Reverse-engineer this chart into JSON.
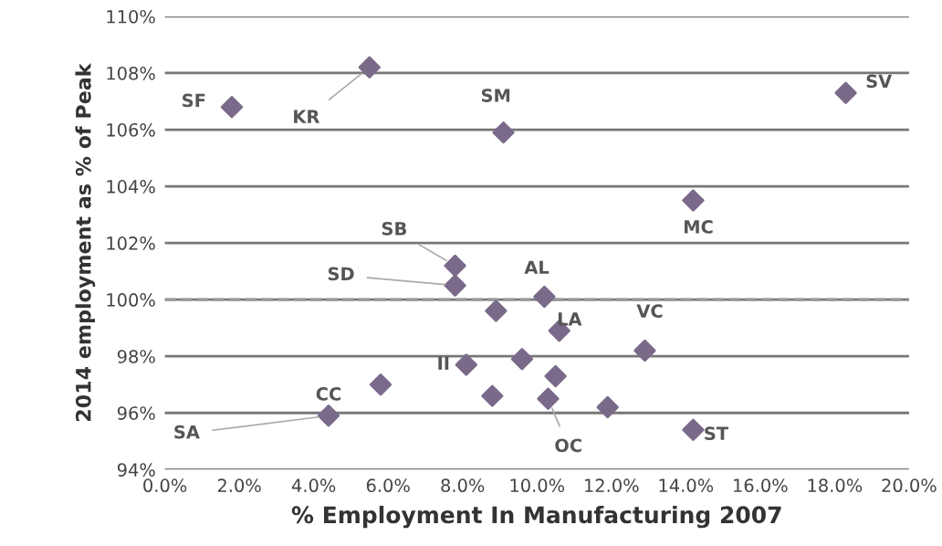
{
  "chart_data": {
    "type": "scatter",
    "xlabel": "% Employment In Manufacturing 2007",
    "ylabel": "2014 employment as % of Peak",
    "x": [
      1.8,
      5.5,
      9.1,
      18.3,
      14.2,
      7.8,
      7.8,
      8.9,
      10.2,
      10.6,
      12.9,
      8.1,
      9.6,
      10.5,
      8.8,
      10.3,
      11.9,
      14.2,
      4.4,
      5.8
    ],
    "series": [
      {
        "color": "#7a6a8a",
        "values": [
          106.8,
          108.2,
          105.9,
          107.3,
          103.5,
          101.2,
          100.5,
          99.6,
          100.1,
          98.9,
          98.2,
          97.7,
          97.9,
          97.3,
          96.6,
          96.5,
          96.2,
          95.4,
          95.9,
          97.0
        ]
      }
    ],
    "marker": "diamond",
    "grid": "y",
    "xlim": [
      0,
      20
    ],
    "xticks": [
      {
        "value": 0,
        "label": "0.0%"
      },
      {
        "value": 2,
        "label": "2.0%"
      },
      {
        "value": 4,
        "label": "4.0%"
      },
      {
        "value": 6,
        "label": "6.0%"
      },
      {
        "value": 8,
        "label": "8.0%"
      },
      {
        "value": 10,
        "label": "10.0%"
      },
      {
        "value": 12,
        "label": "12.0%"
      },
      {
        "value": 14,
        "label": "14.0%"
      },
      {
        "value": 16,
        "label": "16.0%"
      },
      {
        "value": 18,
        "label": "18.0%"
      },
      {
        "value": 20,
        "label": "20.0%"
      }
    ],
    "ylim": [
      94,
      110
    ],
    "yticks": [
      {
        "value": 94,
        "label": "94%"
      },
      {
        "value": 96,
        "label": "96%"
      },
      {
        "value": 98,
        "label": "98%"
      },
      {
        "value": 100,
        "label": "100%"
      },
      {
        "value": 102,
        "label": "102%"
      },
      {
        "value": 104,
        "label": "104%"
      },
      {
        "value": 106,
        "label": "106%"
      },
      {
        "value": 108,
        "label": "108%"
      },
      {
        "value": 110,
        "label": "110%"
      }
    ],
    "ref_lines": [
      {
        "axis": "y",
        "value": 100,
        "line_style": "dashed",
        "color": "#999999"
      }
    ],
    "annotations": [
      {
        "text": "SF",
        "x": 1.8,
        "y": 106.8
      },
      {
        "text": "KR",
        "x": 5.5,
        "y": 108.2
      },
      {
        "text": "SM",
        "x": 9.1,
        "y": 105.9
      },
      {
        "text": "SV",
        "x": 18.3,
        "y": 107.3
      },
      {
        "text": "MC",
        "x": 14.2,
        "y": 103.5
      },
      {
        "text": "SB",
        "x": 7.8,
        "y": 101.2
      },
      {
        "text": "SD",
        "x": 7.8,
        "y": 100.5
      },
      {
        "text": "AL",
        "x": 10.2,
        "y": 100.1
      },
      {
        "text": "LA",
        "x": 10.6,
        "y": 98.9
      },
      {
        "text": "VC",
        "x": 12.9,
        "y": 98.2
      },
      {
        "text": "II",
        "x": 8.1,
        "y": 97.7
      },
      {
        "text": "OC",
        "x": 10.3,
        "y": 96.5
      },
      {
        "text": "ST",
        "x": 14.2,
        "y": 95.4
      },
      {
        "text": "CC",
        "x": 4.4,
        "y": 95.9
      },
      {
        "text": "SA",
        "x": 4.4,
        "y": 95.9
      }
    ]
  }
}
